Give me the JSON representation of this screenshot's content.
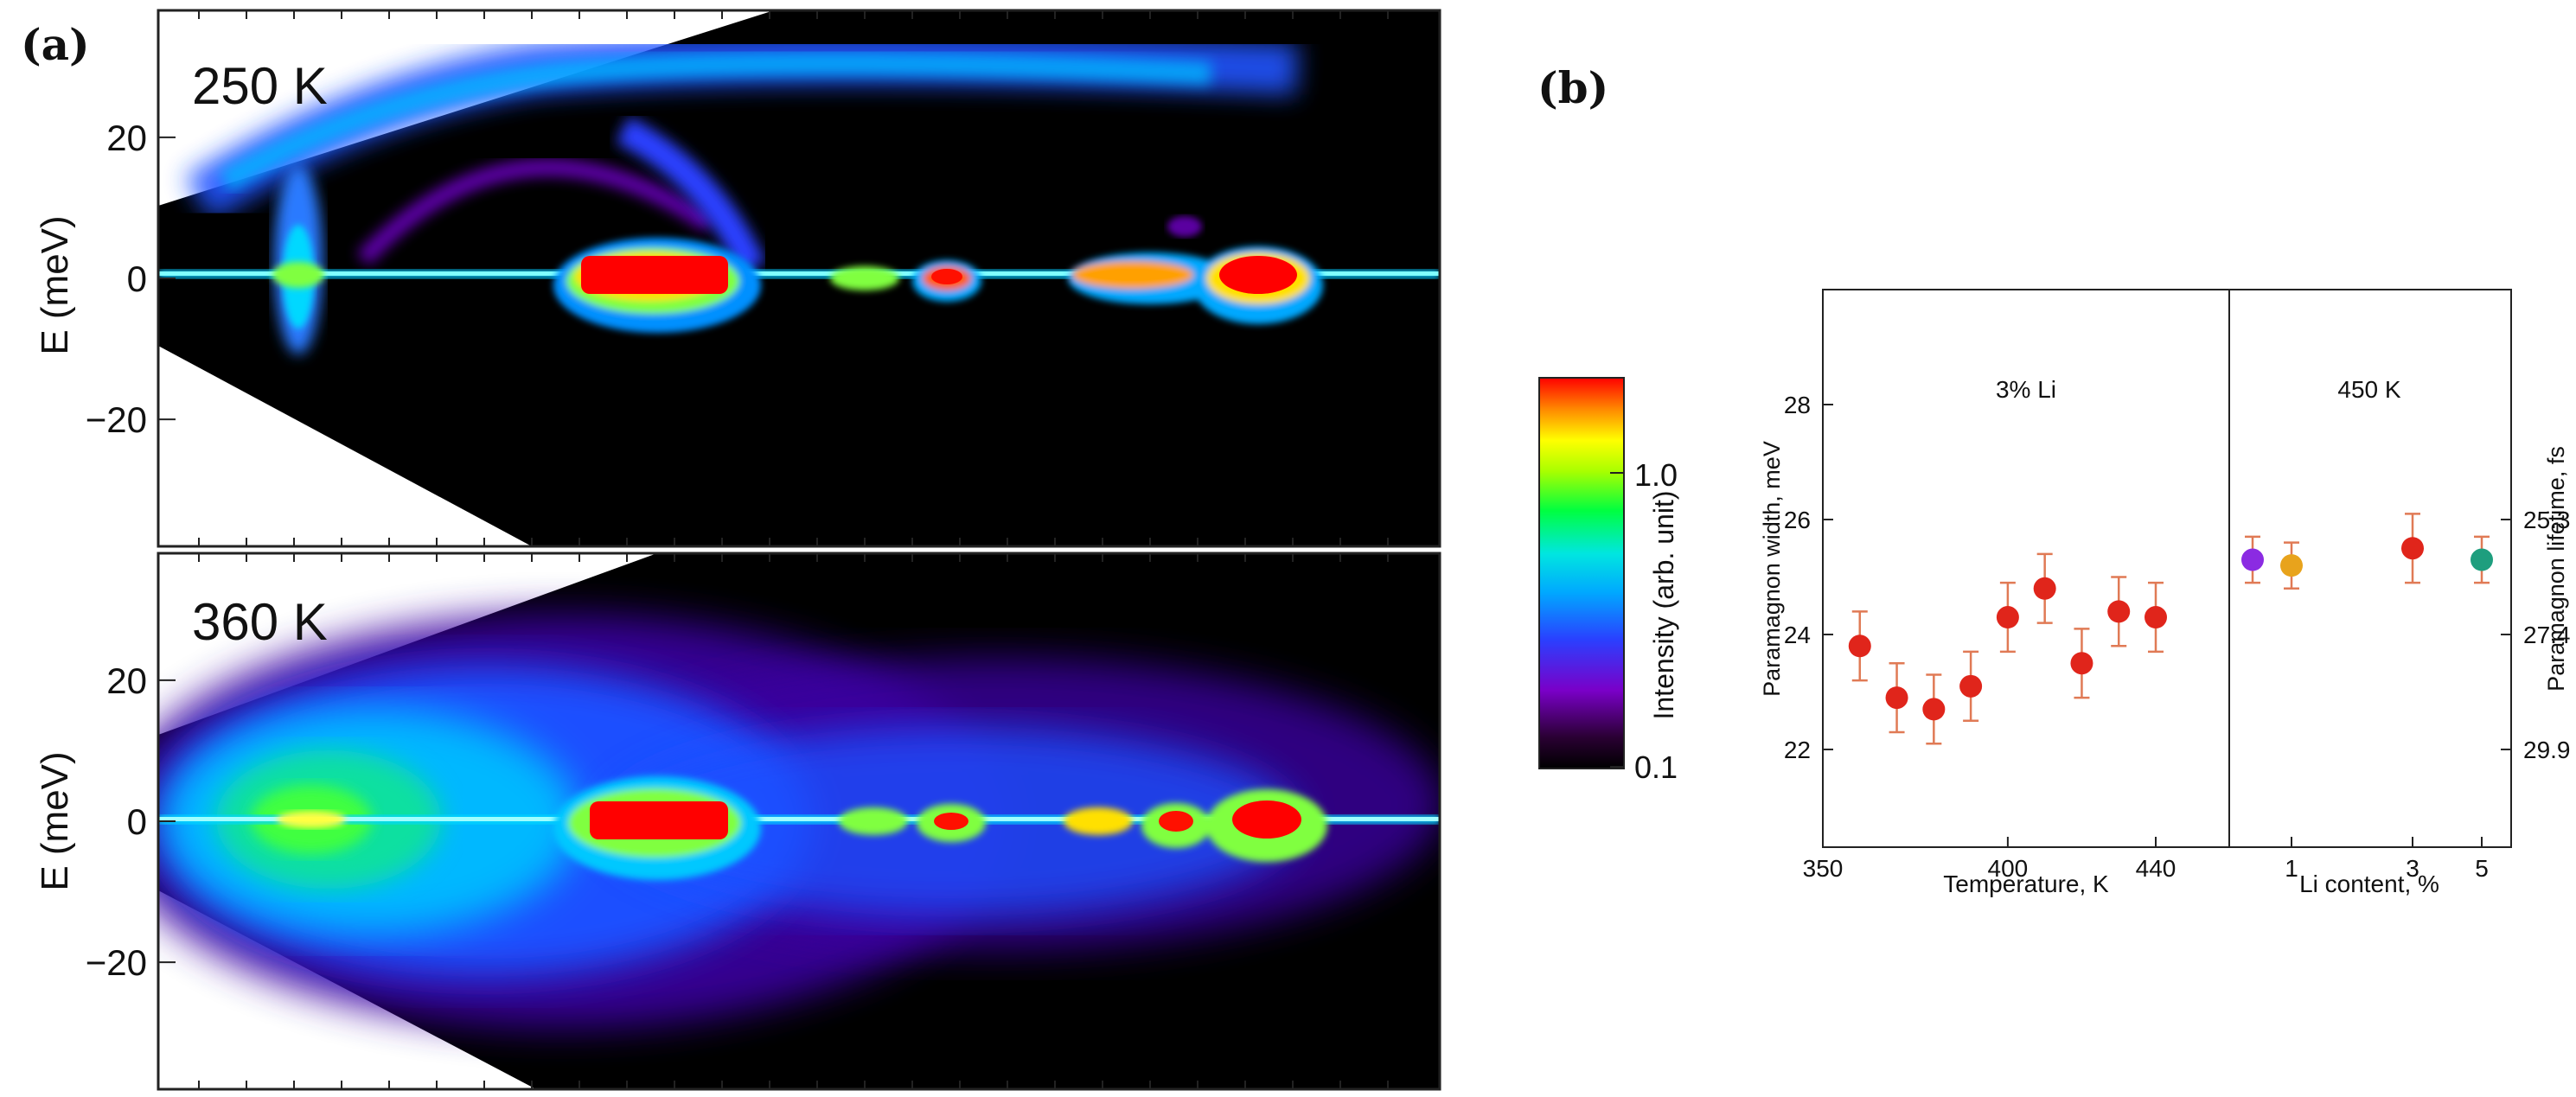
{
  "figure": {
    "panel_a_label": "(a)",
    "panel_b_label": "(b)"
  },
  "colors": {
    "red_points": "#e0251b",
    "purple_point": "#8b2be2",
    "orange_point": "#e8a31c",
    "teal_point": "#1e9e7e",
    "errorbar": "#e07a55"
  },
  "chart_data": [
    {
      "type": "heatmap",
      "panel": "A",
      "temperature_label": "250 K",
      "ylabel": "E (meV)",
      "yticks": [
        20,
        0,
        -20
      ],
      "ylim": [
        -38,
        38
      ],
      "description_colormap": "rainbow (black-purple-blue-cyan-green-yellow-red)"
    },
    {
      "type": "heatmap",
      "panel": "B",
      "temperature_label": "360 K",
      "ylabel": "E (meV)",
      "yticks": [
        20,
        0,
        -20
      ],
      "ylim": [
        -38,
        38
      ]
    },
    {
      "type": "colorbar",
      "label": "Intensity (arb. unit)",
      "ticks": [
        "1.0",
        "0.1"
      ],
      "scale": "log",
      "range": [
        0.1,
        3.0
      ]
    },
    {
      "type": "scatter",
      "left_panel": {
        "annotation": "3% Li",
        "xlabel": "Temperature, K",
        "xticks": [
          350,
          400,
          440
        ],
        "xlim": [
          350,
          455
        ],
        "points": [
          {
            "x": 360,
            "y": 23.8,
            "err": 0.6
          },
          {
            "x": 370,
            "y": 22.9,
            "err": 0.6
          },
          {
            "x": 380,
            "y": 22.7,
            "err": 0.6
          },
          {
            "x": 390,
            "y": 23.1,
            "err": 0.6
          },
          {
            "x": 400,
            "y": 24.3,
            "err": 0.6
          },
          {
            "x": 410,
            "y": 24.8,
            "err": 0.6
          },
          {
            "x": 420,
            "y": 23.5,
            "err": 0.6
          },
          {
            "x": 430,
            "y": 24.4,
            "err": 0.6
          },
          {
            "x": 440,
            "y": 24.3,
            "err": 0.6
          }
        ]
      },
      "right_panel": {
        "annotation": "450 K",
        "xlabel": "Li content, %",
        "xticks": [
          "1",
          "3",
          "5"
        ],
        "points": [
          {
            "x": 0,
            "y": 25.3,
            "err": 0.4,
            "color": "purple"
          },
          {
            "x": 1,
            "y": 25.2,
            "err": 0.4,
            "color": "orange"
          },
          {
            "x": 3,
            "y": 25.5,
            "err": 0.6,
            "color": "red"
          },
          {
            "x": 5,
            "y": 25.3,
            "err": 0.4,
            "color": "teal"
          }
        ]
      },
      "ylabel": "Paramagnon width, meV",
      "yticks": [
        22,
        24,
        26,
        28
      ],
      "ylim": [
        20.3,
        30
      ],
      "y2label": "Paramagnon lifetime, fs",
      "y2ticks": [
        {
          "label": "25.3",
          "at_width": 26
        },
        {
          "label": "27.4",
          "at_width": 24
        },
        {
          "label": "29.9",
          "at_width": 22
        }
      ]
    }
  ]
}
